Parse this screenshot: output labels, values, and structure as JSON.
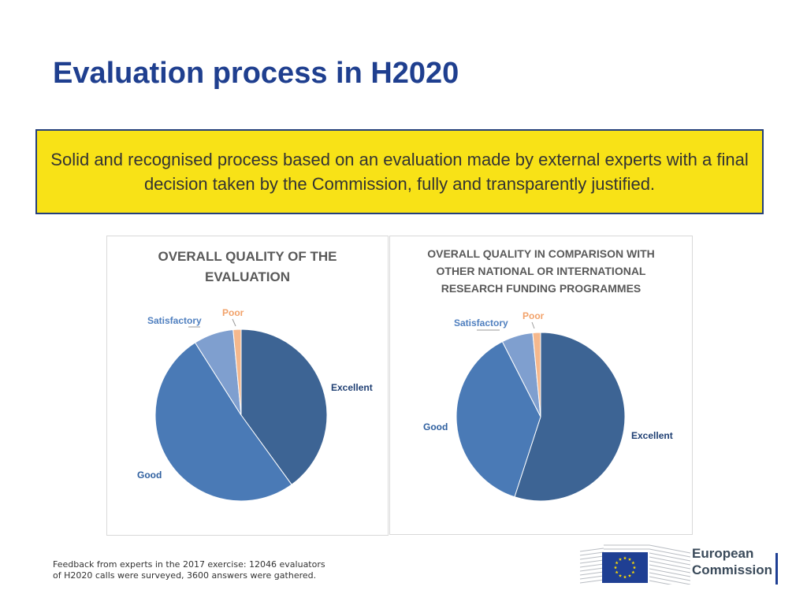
{
  "slide": {
    "title": "Evaluation process in H2020",
    "highlight_text": "Solid and recognised process based on an evaluation made by external experts with a final decision taken by the Commission, fully and transparently justified.",
    "footnote_line1": "Feedback from experts in the 2017 exercise: 12046 evaluators",
    "footnote_line2": "of H2020 calls were surveyed, 3600 answers were gathered.",
    "logo": {
      "line1": "European",
      "line2": "Commission",
      "brand_color": "#1f3f93",
      "star_color": "#ffdd00"
    },
    "colors": {
      "title": "#1f3f8f",
      "highlight_bg": "#f8e217",
      "highlight_border": "#243f7a"
    }
  },
  "chart_data": [
    {
      "type": "pie",
      "title_lines": [
        "OVERALL QUALITY OF THE",
        "EVALUATION"
      ],
      "categories": [
        "Excellent",
        "Good",
        "Satisfactory",
        "Poor"
      ],
      "values": [
        40,
        51,
        7.5,
        1.5
      ],
      "colors": [
        "#3d6494",
        "#4a7ab6",
        "#7f9fcf",
        "#f5b88d"
      ],
      "label_colors": [
        "#1f3f73",
        "#2e5f9f",
        "#4f7fbf",
        "#f2a26a"
      ],
      "legend": "none"
    },
    {
      "type": "pie",
      "title_lines": [
        "OVERALL QUALITY IN COMPARISON WITH",
        "OTHER NATIONAL OR INTERNATIONAL",
        "RESEARCH FUNDING PROGRAMMES"
      ],
      "categories": [
        "Excellent",
        "Good",
        "Satisfactory",
        "Poor"
      ],
      "values": [
        55,
        37.5,
        6,
        1.5
      ],
      "colors": [
        "#3d6494",
        "#4a7ab6",
        "#7f9fcf",
        "#f5b88d"
      ],
      "label_colors": [
        "#1f3f73",
        "#2e5f9f",
        "#4f7fbf",
        "#f2a26a"
      ],
      "legend": "none"
    }
  ]
}
